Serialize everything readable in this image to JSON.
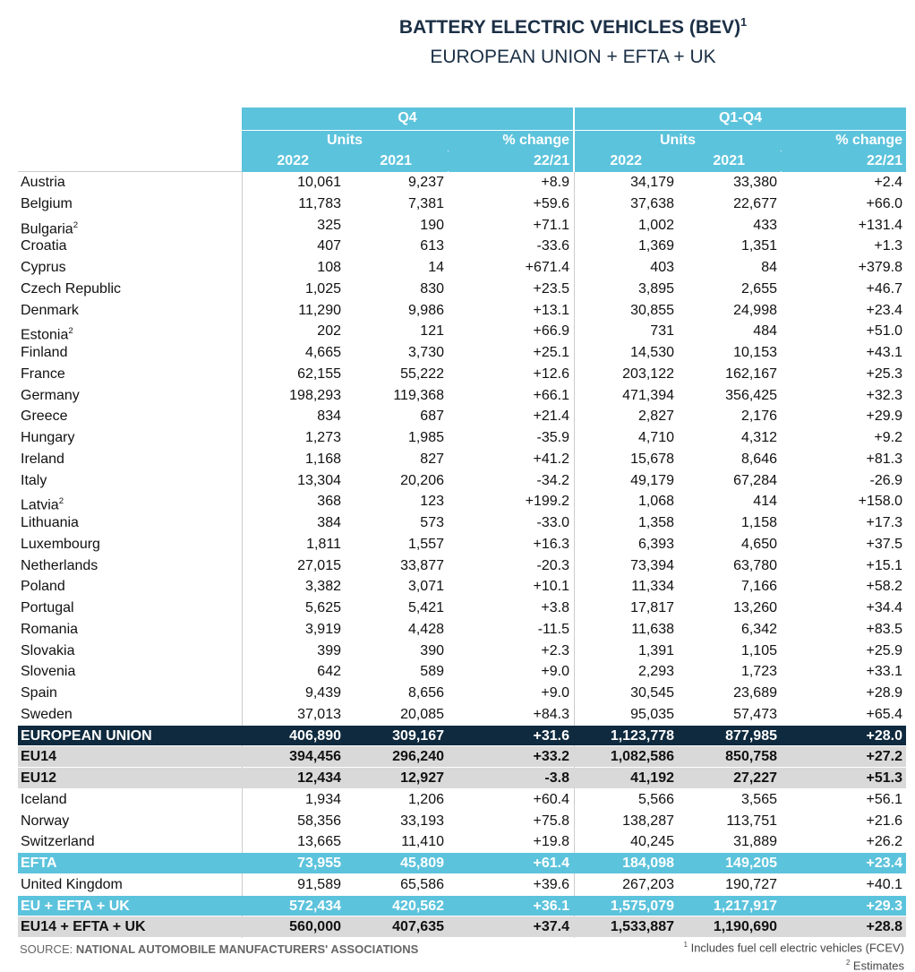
{
  "header": {
    "title": "BATTERY ELECTRIC VEHICLES (BEV)",
    "title_note": "1",
    "subtitle": "EUROPEAN UNION + EFTA + UK"
  },
  "table": {
    "groups": [
      {
        "period": "Q4",
        "units": "Units",
        "change": "% change",
        "years": [
          "2022",
          "2021"
        ],
        "base": "22/21"
      },
      {
        "period": "Q1-Q4",
        "units": "Units",
        "change": "% change",
        "years": [
          "2022",
          "2021"
        ],
        "base": "22/21"
      }
    ],
    "rows": [
      {
        "label": "Austria",
        "cells": [
          "10,061",
          "9,237",
          "+8.9",
          "34,179",
          "33,380",
          "+2.4"
        ]
      },
      {
        "label": "Belgium",
        "cells": [
          "11,783",
          "7,381",
          "+59.6",
          "37,638",
          "22,677",
          "+66.0"
        ]
      },
      {
        "label": "Bulgaria",
        "note": "2",
        "cells": [
          "325",
          "190",
          "+71.1",
          "1,002",
          "433",
          "+131.4"
        ]
      },
      {
        "label": "Croatia",
        "cells": [
          "407",
          "613",
          "-33.6",
          "1,369",
          "1,351",
          "+1.3"
        ]
      },
      {
        "label": "Cyprus",
        "cells": [
          "108",
          "14",
          "+671.4",
          "403",
          "84",
          "+379.8"
        ]
      },
      {
        "label": "Czech Republic",
        "cells": [
          "1,025",
          "830",
          "+23.5",
          "3,895",
          "2,655",
          "+46.7"
        ]
      },
      {
        "label": "Denmark",
        "cells": [
          "11,290",
          "9,986",
          "+13.1",
          "30,855",
          "24,998",
          "+23.4"
        ]
      },
      {
        "label": "Estonia",
        "note": "2",
        "cells": [
          "202",
          "121",
          "+66.9",
          "731",
          "484",
          "+51.0"
        ]
      },
      {
        "label": "Finland",
        "cells": [
          "4,665",
          "3,730",
          "+25.1",
          "14,530",
          "10,153",
          "+43.1"
        ]
      },
      {
        "label": "France",
        "cells": [
          "62,155",
          "55,222",
          "+12.6",
          "203,122",
          "162,167",
          "+25.3"
        ]
      },
      {
        "label": "Germany",
        "cells": [
          "198,293",
          "119,368",
          "+66.1",
          "471,394",
          "356,425",
          "+32.3"
        ]
      },
      {
        "label": "Greece",
        "cells": [
          "834",
          "687",
          "+21.4",
          "2,827",
          "2,176",
          "+29.9"
        ]
      },
      {
        "label": "Hungary",
        "cells": [
          "1,273",
          "1,985",
          "-35.9",
          "4,710",
          "4,312",
          "+9.2"
        ]
      },
      {
        "label": "Ireland",
        "cells": [
          "1,168",
          "827",
          "+41.2",
          "15,678",
          "8,646",
          "+81.3"
        ]
      },
      {
        "label": "Italy",
        "cells": [
          "13,304",
          "20,206",
          "-34.2",
          "49,179",
          "67,284",
          "-26.9"
        ]
      },
      {
        "label": "Latvia",
        "note": "2",
        "cells": [
          "368",
          "123",
          "+199.2",
          "1,068",
          "414",
          "+158.0"
        ]
      },
      {
        "label": "Lithuania",
        "cells": [
          "384",
          "573",
          "-33.0",
          "1,358",
          "1,158",
          "+17.3"
        ]
      },
      {
        "label": "Luxembourg",
        "cells": [
          "1,811",
          "1,557",
          "+16.3",
          "6,393",
          "4,650",
          "+37.5"
        ]
      },
      {
        "label": "Netherlands",
        "cells": [
          "27,015",
          "33,877",
          "-20.3",
          "73,394",
          "63,780",
          "+15.1"
        ]
      },
      {
        "label": "Poland",
        "cells": [
          "3,382",
          "3,071",
          "+10.1",
          "11,334",
          "7,166",
          "+58.2"
        ]
      },
      {
        "label": "Portugal",
        "cells": [
          "5,625",
          "5,421",
          "+3.8",
          "17,817",
          "13,260",
          "+34.4"
        ]
      },
      {
        "label": "Romania",
        "cells": [
          "3,919",
          "4,428",
          "-11.5",
          "11,638",
          "6,342",
          "+83.5"
        ]
      },
      {
        "label": "Slovakia",
        "cells": [
          "399",
          "390",
          "+2.3",
          "1,391",
          "1,105",
          "+25.9"
        ]
      },
      {
        "label": "Slovenia",
        "cells": [
          "642",
          "589",
          "+9.0",
          "2,293",
          "1,723",
          "+33.1"
        ]
      },
      {
        "label": "Spain",
        "cells": [
          "9,439",
          "8,656",
          "+9.0",
          "30,545",
          "23,689",
          "+28.9"
        ]
      },
      {
        "label": "Sweden",
        "cells": [
          "37,013",
          "20,085",
          "+84.3",
          "95,035",
          "57,473",
          "+65.4"
        ]
      },
      {
        "label": "EUROPEAN UNION",
        "cells": [
          "406,890",
          "309,167",
          "+31.6",
          "1,123,778",
          "877,985",
          "+28.0"
        ]
      },
      {
        "label": "EU14",
        "cells": [
          "394,456",
          "296,240",
          "+33.2",
          "1,082,586",
          "850,758",
          "+27.2"
        ]
      },
      {
        "label": "EU12",
        "cells": [
          "12,434",
          "12,927",
          "-3.8",
          "41,192",
          "27,227",
          "+51.3"
        ]
      },
      {
        "label": "Iceland",
        "cells": [
          "1,934",
          "1,206",
          "+60.4",
          "5,566",
          "3,565",
          "+56.1"
        ]
      },
      {
        "label": "Norway",
        "cells": [
          "58,356",
          "33,193",
          "+75.8",
          "138,287",
          "113,751",
          "+21.6"
        ]
      },
      {
        "label": "Switzerland",
        "cells": [
          "13,665",
          "11,410",
          "+19.8",
          "40,245",
          "31,889",
          "+26.2"
        ]
      },
      {
        "label": "EFTA",
        "cells": [
          "73,955",
          "45,809",
          "+61.4",
          "184,098",
          "149,205",
          "+23.4"
        ]
      },
      {
        "label": "United Kingdom",
        "cells": [
          "91,589",
          "65,586",
          "+39.6",
          "267,203",
          "190,727",
          "+40.1"
        ]
      },
      {
        "label": "EU + EFTA + UK",
        "cells": [
          "572,434",
          "420,562",
          "+36.1",
          "1,575,079",
          "1,217,917",
          "+29.3"
        ]
      },
      {
        "label": "EU14 + EFTA + UK",
        "cells": [
          "560,000",
          "407,635",
          "+37.4",
          "1,533,887",
          "1,190,690",
          "+28.8"
        ]
      }
    ]
  },
  "footer": {
    "source_label": "SOURCE:",
    "source": "NATIONAL AUTOMOBILE MANUFACTURERS' ASSOCIATIONS",
    "notes": [
      {
        "mark": "1",
        "text": "Includes fuel cell electric vehicles (FCEV)"
      },
      {
        "mark": "2",
        "text": "Estimates"
      }
    ]
  }
}
